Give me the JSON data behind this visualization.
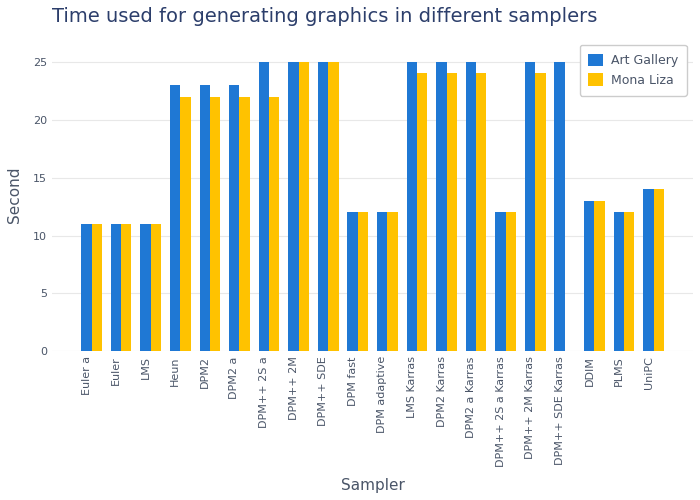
{
  "title": "Time used for generating graphics in different samplers",
  "xlabel": "Sampler",
  "ylabel": "Second",
  "categories": [
    "Euler a",
    "Euler",
    "LMS",
    "Heun",
    "DPM2",
    "DPM2 a",
    "DPM++ 2S a",
    "DPM++ 2M",
    "DPM++ SDE",
    "DPM fast",
    "DPM adaptive",
    "LMS Karras",
    "DPM2 Karras",
    "DPM2 a Karras",
    "DPM++ 2S a Karras",
    "DPM++ 2M Karras",
    "DPM++ SDE Karras",
    "DDIM",
    "PLMS",
    "UniPC"
  ],
  "art_gallery": [
    11,
    11,
    11,
    23,
    23,
    23,
    25,
    25,
    25,
    12,
    12,
    25,
    25,
    25,
    12,
    25,
    25,
    13,
    12,
    14
  ],
  "mona_liza": [
    11,
    11,
    11,
    22,
    22,
    22,
    22,
    25,
    25,
    12,
    12,
    24,
    24,
    24,
    12,
    24,
    0,
    13,
    12,
    14
  ],
  "bar_color_blue": "#1f78d4",
  "bar_color_yellow": "#FFC200",
  "background_color": "#ffffff",
  "title_color": "#2c3e6b",
  "label_color": "#4a5568",
  "tick_color": "#4a5568",
  "grid_color": "#e8e8e8",
  "ylim": [
    0,
    27
  ],
  "yticks": [
    0,
    5,
    10,
    15,
    20,
    25
  ],
  "legend_labels": [
    "Art Gallery",
    "Mona Liza"
  ],
  "title_fontsize": 14,
  "axis_label_fontsize": 11,
  "tick_fontsize": 8,
  "bar_width": 0.35
}
